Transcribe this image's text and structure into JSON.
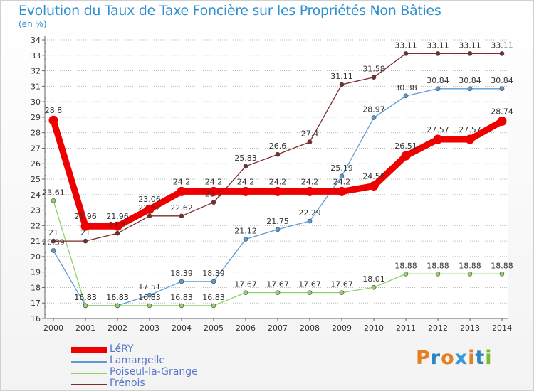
{
  "title": "Evolution du Taux de Taxe Foncière sur les Propriétés Non Bâties",
  "unit_label": "(en %)",
  "logo": {
    "text": "Proxiti",
    "letters": [
      "P",
      "r",
      "o",
      "x",
      "i",
      "t",
      "i"
    ],
    "colors": [
      "#e67e22",
      "#2e86c1",
      "#e67e22",
      "#3498db",
      "#e67e22",
      "#2e86c1",
      "#7dbb2e"
    ]
  },
  "chart_data": {
    "type": "line",
    "title": "Evolution du Taux de Taxe Foncière sur les Propriétés Non Bâties",
    "ylabel": "(en %)",
    "xlabel": "",
    "x": [
      "2000",
      "2001",
      "2002",
      "2003",
      "2004",
      "2005",
      "2006",
      "2007",
      "2008",
      "2009",
      "2010",
      "2011",
      "2012",
      "2013",
      "2014"
    ],
    "ylim": [
      16,
      34
    ],
    "yticks": [
      16,
      17,
      18,
      19,
      20,
      21,
      22,
      23,
      24,
      25,
      26,
      27,
      28,
      29,
      30,
      31,
      32,
      33,
      34
    ],
    "grid": "horizontal dotted",
    "legend_position": "bottom-left",
    "series": [
      {
        "name": "LéRY",
        "color": "#ee0000",
        "emphasis": true,
        "values": [
          28.8,
          21.96,
          21.96,
          23.06,
          24.2,
          24.2,
          24.2,
          24.2,
          24.2,
          24.2,
          24.56,
          26.51,
          27.57,
          27.57,
          28.74
        ],
        "labels": [
          "28.8",
          "21.96",
          "21.96",
          "23.06",
          "24.2",
          "24.2",
          "24.2",
          "24.2",
          "24.2",
          "24.2",
          "24.56",
          "26.51",
          "27.57",
          "27.57",
          "28.74"
        ]
      },
      {
        "name": "Lamargelle",
        "color": "#5b9bd5",
        "values": [
          20.39,
          16.83,
          16.83,
          17.51,
          18.39,
          18.39,
          21.12,
          21.75,
          22.29,
          25.19,
          28.97,
          30.38,
          30.84,
          30.84,
          30.84
        ],
        "labels": [
          "20.39",
          "16.83",
          "16.83",
          "17.51",
          "18.39",
          "18.39",
          "21.12",
          "21.75",
          "22.29",
          "25.19",
          "28.97",
          "30.38",
          "30.84",
          "30.84",
          "30.84"
        ]
      },
      {
        "name": "Poiseul-la-Grange",
        "color": "#8fd16a",
        "values": [
          23.61,
          16.83,
          16.83,
          16.83,
          16.83,
          16.83,
          17.67,
          17.67,
          17.67,
          17.67,
          18.01,
          18.88,
          18.88,
          18.88,
          18.88
        ],
        "labels": [
          "23.61",
          "16.83",
          "16.83",
          "16.83",
          "16.83",
          "16.83",
          "17.67",
          "17.67",
          "17.67",
          "17.67",
          "18.01",
          "18.88",
          "18.88",
          "18.88",
          "18.88"
        ]
      },
      {
        "name": "Frénois",
        "color": "#7b2c2c",
        "values": [
          21,
          21,
          21.5,
          22.62,
          22.62,
          23.5,
          25.83,
          26.6,
          27.4,
          31.11,
          31.58,
          33.11,
          33.11,
          33.11,
          33.11
        ],
        "labels": [
          "21",
          "21",
          "21.5",
          "22.62",
          "22.62",
          "23.5",
          "25.83",
          "26.6",
          "27.4",
          "31.11",
          "31.58",
          "33.11",
          "33.11",
          "33.11",
          "33.11"
        ]
      }
    ]
  }
}
